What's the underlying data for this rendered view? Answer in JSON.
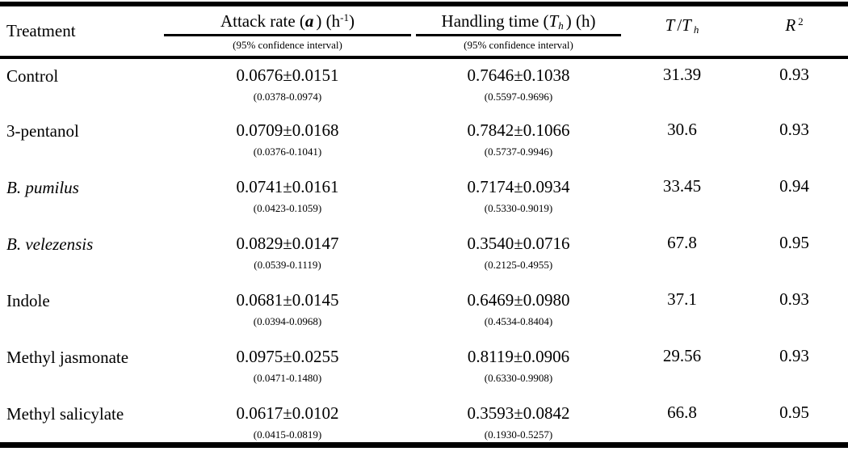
{
  "table": {
    "header": {
      "treatment": "Treatment",
      "attack": {
        "prefix": "Attack rate (",
        "symbol": "a",
        "mid": ") (h",
        "sup": "-1",
        "suffix": ")",
        "ci_note": "(95% confidence interval)"
      },
      "handling": {
        "prefix": "Handling time (",
        "symbol": "T",
        "sub": "h",
        "mid": ") (h)",
        "ci_note": "(95% confidence interval)"
      },
      "t_over_th": {
        "t1": "T",
        "slash": "/",
        "t2": "T",
        "sub": "h"
      },
      "r_squared": {
        "base": "R",
        "sup": "2"
      }
    },
    "rows": [
      {
        "treatment": "Control",
        "treatment_italic": false,
        "attack_value": "0.0676±0.0151",
        "attack_ci": "(0.0378-0.0974)",
        "handling_value": "0.7646±0.1038",
        "handling_ci": "(0.5597-0.9696)",
        "t_th": "31.39",
        "r2": "0.93"
      },
      {
        "treatment": "3-pentanol",
        "treatment_italic": false,
        "attack_value": "0.0709±0.0168",
        "attack_ci": "(0.0376-0.1041)",
        "handling_value": "0.7842±0.1066",
        "handling_ci": "(0.5737-0.9946)",
        "t_th": "30.6",
        "r2": "0.93"
      },
      {
        "treatment": "B. pumilus",
        "treatment_italic": true,
        "attack_value": "0.0741±0.0161",
        "attack_ci": "(0.0423-0.1059)",
        "handling_value": "0.7174±0.0934",
        "handling_ci": "(0.5330-0.9019)",
        "t_th": "33.45",
        "r2": "0.94"
      },
      {
        "treatment": "B. velezensis",
        "treatment_italic": true,
        "attack_value": "0.0829±0.0147",
        "attack_ci": "(0.0539-0.1119)",
        "handling_value": "0.3540±0.0716",
        "handling_ci": "(0.2125-0.4955)",
        "t_th": "67.8",
        "r2": "0.95"
      },
      {
        "treatment": "Indole",
        "treatment_italic": false,
        "attack_value": "0.0681±0.0145",
        "attack_ci": "(0.0394-0.0968)",
        "handling_value": "0.6469±0.0980",
        "handling_ci": "(0.4534-0.8404)",
        "t_th": "37.1",
        "r2": "0.93"
      },
      {
        "treatment": "Methyl jasmonate",
        "treatment_italic": false,
        "attack_value": "0.0975±0.0255",
        "attack_ci": "(0.0471-0.1480)",
        "handling_value": "0.8119±0.0906",
        "handling_ci": "(0.6330-0.9908)",
        "t_th": "29.56",
        "r2": "0.93"
      },
      {
        "treatment": "Methyl salicylate",
        "treatment_italic": false,
        "attack_value": "0.0617±0.0102",
        "attack_ci": "(0.0415-0.0819)",
        "handling_value": "0.3593±0.0842",
        "handling_ci": "(0.1930-0.5257)",
        "t_th": "66.8",
        "r2": "0.95"
      }
    ]
  }
}
